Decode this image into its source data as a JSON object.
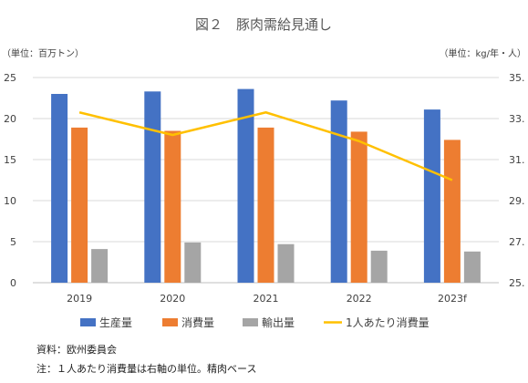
{
  "chart_data": {
    "type": "bar",
    "title": "図２　豚肉需給見通し",
    "left_unit": "（単位：百万トン）",
    "right_unit": "（単位：kg/年・人）",
    "categories": [
      "2019",
      "2020",
      "2021",
      "2022",
      "2023f"
    ],
    "series": [
      {
        "name": "生産量",
        "type": "bar",
        "axis": "left",
        "color": "#4472C4",
        "values": [
          23.0,
          23.3,
          23.6,
          22.2,
          21.1
        ]
      },
      {
        "name": "消費量",
        "type": "bar",
        "axis": "left",
        "color": "#ED7D31",
        "values": [
          18.9,
          18.5,
          18.9,
          18.4,
          17.4
        ]
      },
      {
        "name": "輸出量",
        "type": "bar",
        "axis": "left",
        "color": "#A5A5A5",
        "values": [
          4.1,
          4.9,
          4.7,
          3.9,
          3.8
        ]
      },
      {
        "name": "1人あたり消費量",
        "type": "line",
        "axis": "right",
        "color": "#FFC000",
        "values": [
          33.3,
          32.2,
          33.3,
          31.9,
          30.0
        ]
      }
    ],
    "ylim_left": [
      0,
      25
    ],
    "yticks_left": [
      "0",
      "5",
      "10",
      "15",
      "20",
      "25"
    ],
    "ylim_right": [
      25,
      35
    ],
    "yticks_right": [
      "25.",
      "27.",
      "29.",
      "31.",
      "33.",
      "35."
    ],
    "grid": true,
    "legend_position": "bottom"
  },
  "notes": [
    "資料：欧州委員会",
    "注：１人あたり消費量は右軸の単位。精肉ベース"
  ]
}
